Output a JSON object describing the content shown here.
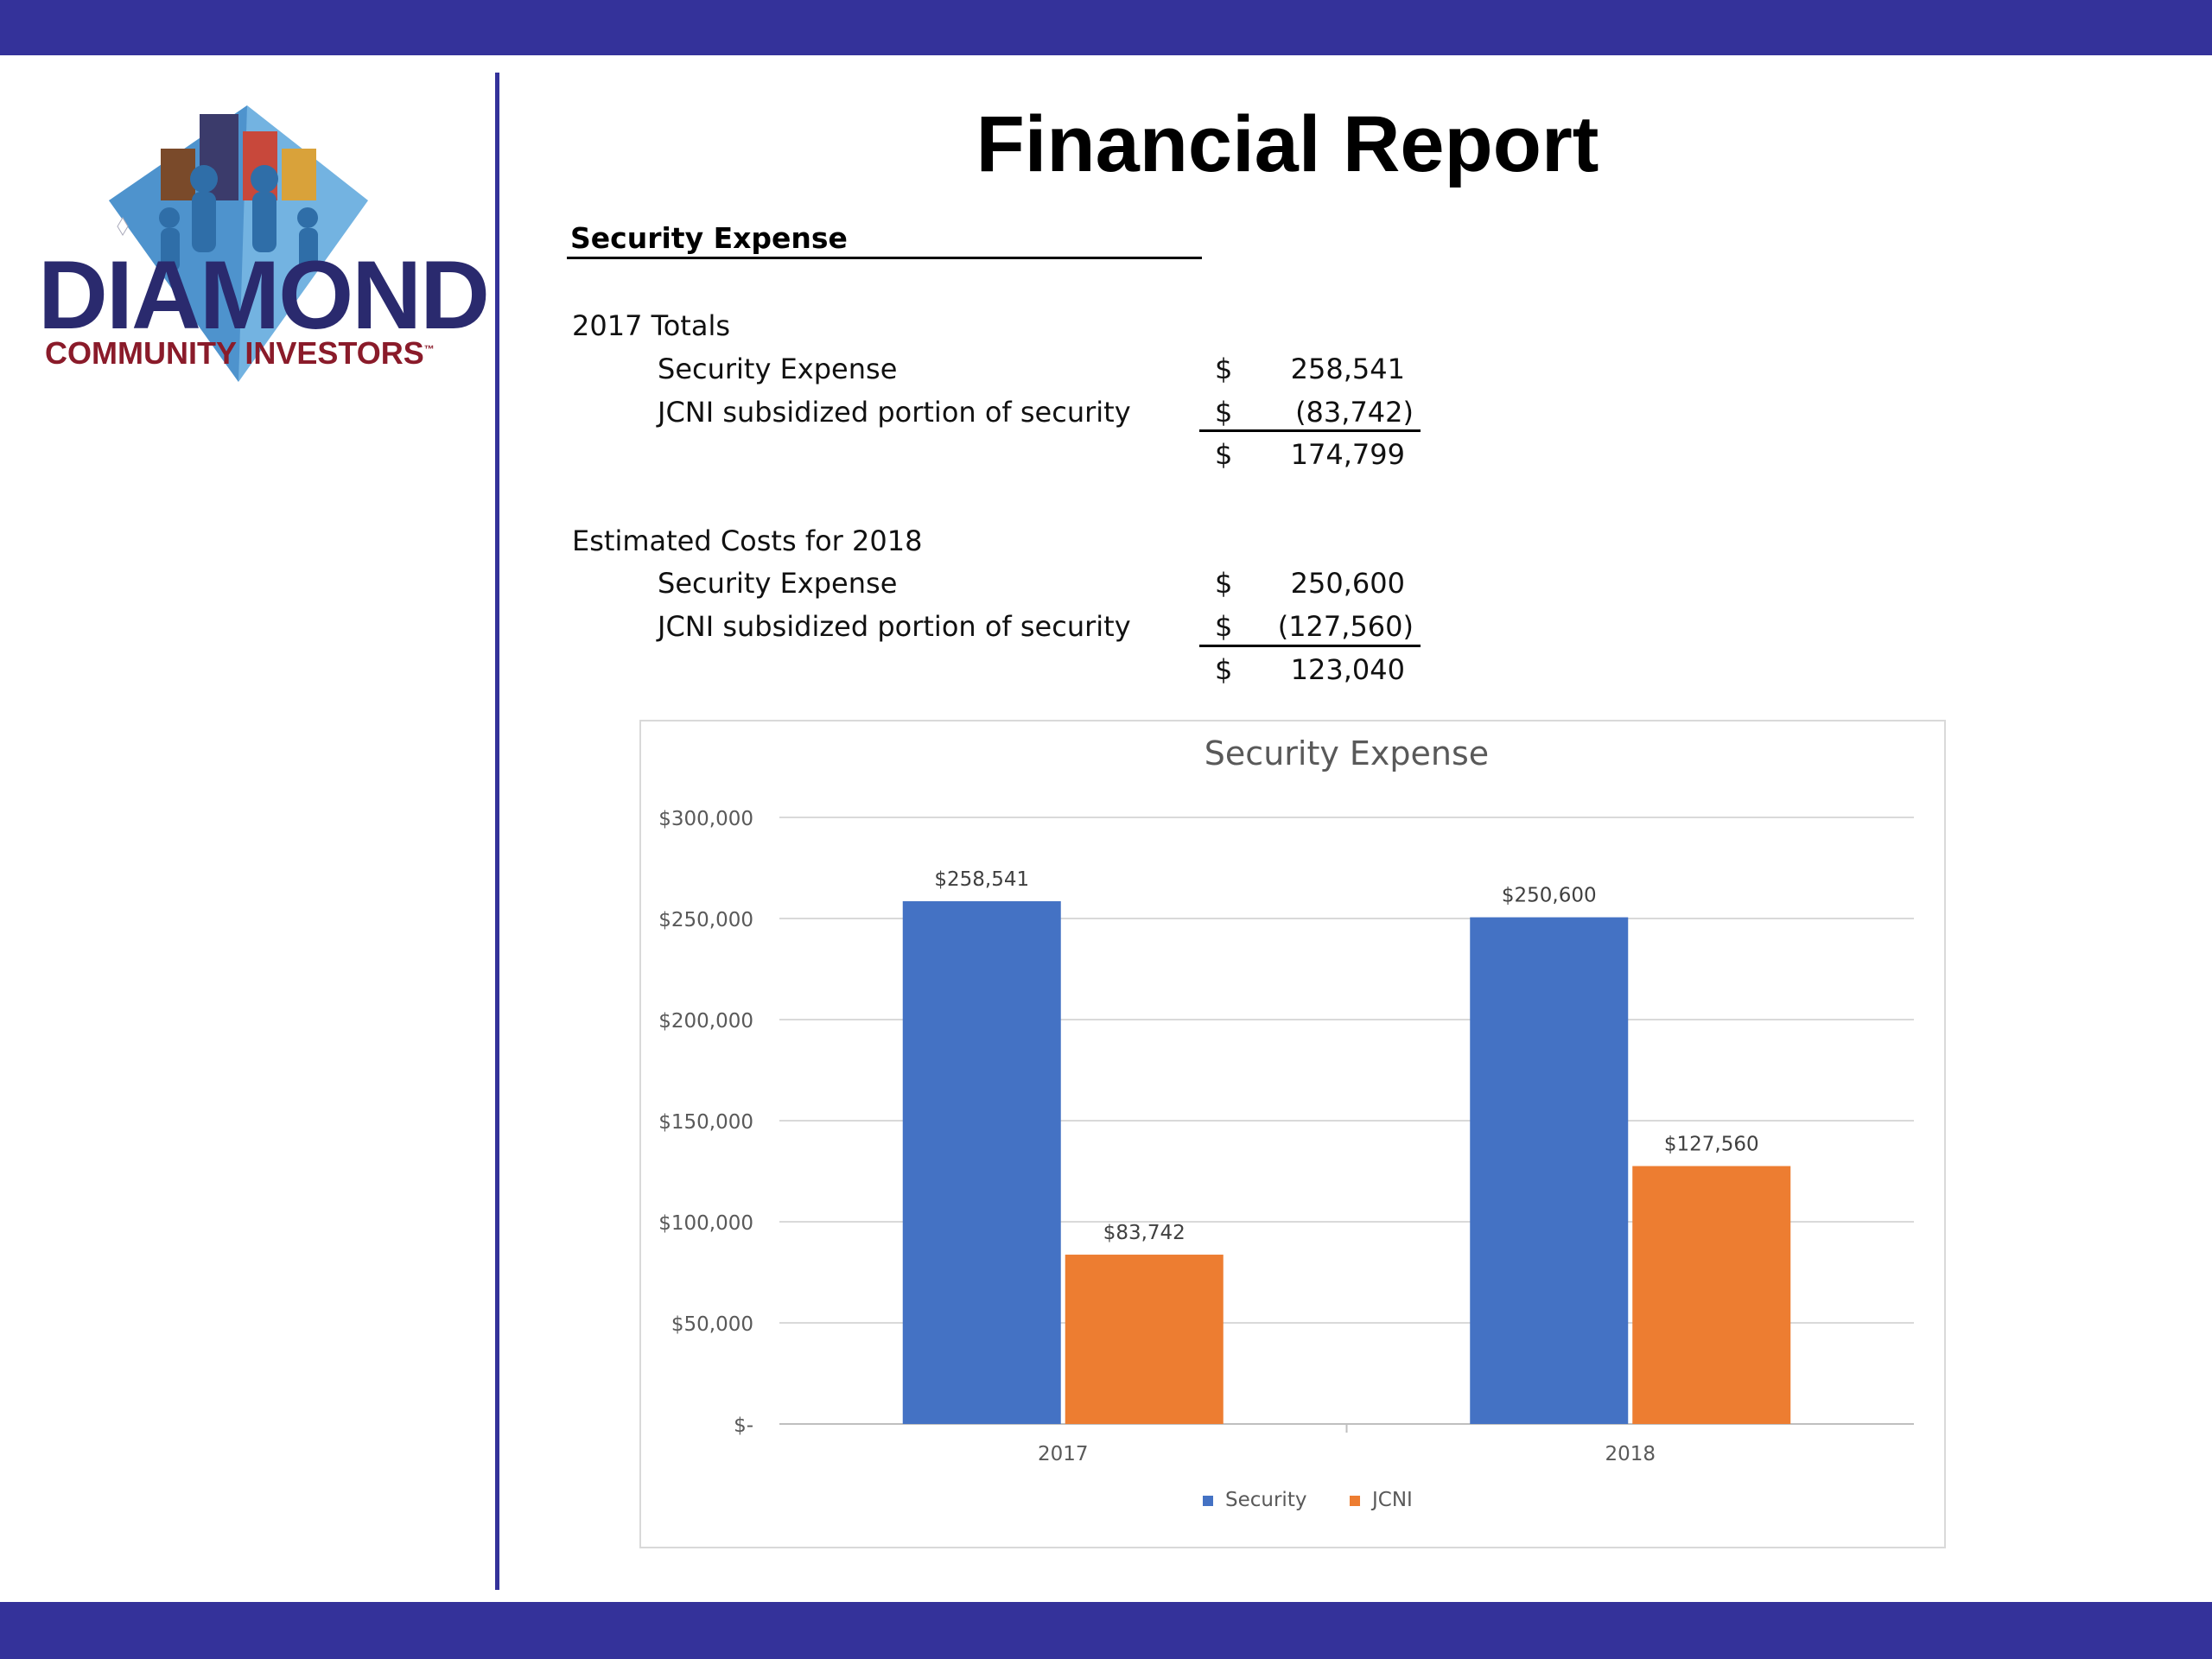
{
  "logo": {
    "word": "DIAMOND",
    "sub": "COMMUNITY INVESTORS",
    "tm": "™"
  },
  "title": "Financial Report",
  "section": {
    "heading": "Security Expense",
    "blocks": [
      {
        "heading": "2017 Totals",
        "rows": [
          {
            "label": "Security Expense",
            "cur": "$",
            "value": "258,541"
          },
          {
            "label": "JCNI subsidized portion of security",
            "cur": "$",
            "value": "(83,742)"
          }
        ],
        "total": {
          "cur": "$",
          "value": "174,799"
        }
      },
      {
        "heading": "Estimated Costs for 2018",
        "rows": [
          {
            "label": "Security Expense",
            "cur": "$",
            "value": "250,600"
          },
          {
            "label": "JCNI subsidized portion of security",
            "cur": "$",
            "value": "(127,560)"
          }
        ],
        "total": {
          "cur": "$",
          "value": "123,040"
        }
      }
    ]
  },
  "colors": {
    "brand_bar": "#34329a",
    "security": "#4472c4",
    "jcni": "#ed7d31"
  },
  "chart_data": {
    "type": "bar",
    "title": "Security Expense",
    "categories": [
      "2017",
      "2018"
    ],
    "series": [
      {
        "name": "Security",
        "values": [
          258541,
          250600
        ],
        "labels": [
          "$258,541",
          "$250,600"
        ],
        "color": "#4472c4"
      },
      {
        "name": "JCNI",
        "values": [
          83742,
          127560
        ],
        "labels": [
          "$83,742",
          "$127,560"
        ],
        "color": "#ed7d31"
      }
    ],
    "ylim": [
      0,
      300000
    ],
    "yticks": [
      0,
      50000,
      100000,
      150000,
      200000,
      250000,
      300000
    ],
    "ytick_labels": [
      "$-",
      "$50,000",
      "$100,000",
      "$150,000",
      "$200,000",
      "$250,000",
      "$300,000"
    ],
    "grid": true,
    "legend": "bottom"
  }
}
